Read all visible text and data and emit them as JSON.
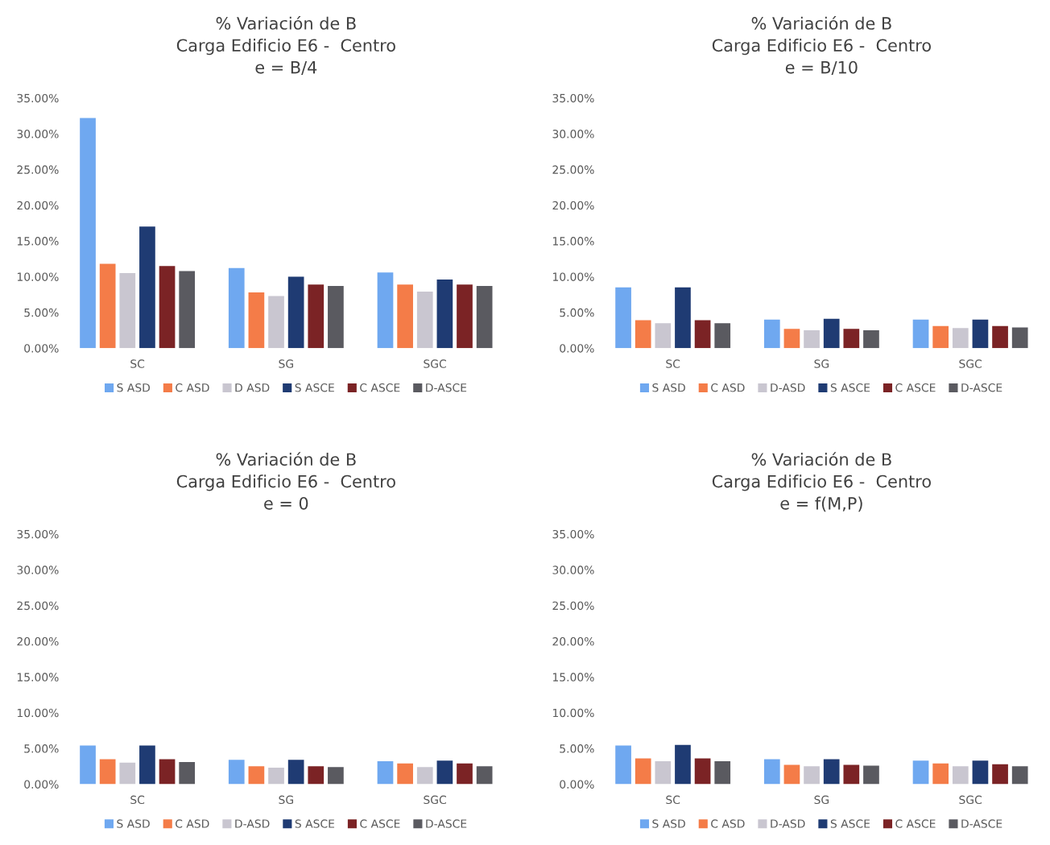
{
  "chart_data": [
    {
      "type": "bar",
      "title": "% Variación de B\nCarga Edificio E6 -  Centro\ne = B/4",
      "categories": [
        "SC",
        "SG",
        "SGC"
      ],
      "ylim": [
        0,
        35
      ],
      "yticks": [
        {
          "value": 0,
          "label": "0.00%"
        },
        {
          "value": 5,
          "label": "5.00%"
        },
        {
          "value": 10,
          "label": "10.00%"
        },
        {
          "value": 15,
          "label": "15.00%"
        },
        {
          "value": 20,
          "label": "20.00%"
        },
        {
          "value": 25,
          "label": "25.00%"
        },
        {
          "value": 30,
          "label": "30.00%"
        },
        {
          "value": 35,
          "label": "35.00%"
        }
      ],
      "grid": false,
      "legend": "bottom",
      "series": [
        {
          "name": "S ASD",
          "color": "#6fa8f0",
          "values": [
            32.2,
            11.2,
            10.6
          ]
        },
        {
          "name": "C ASD",
          "color": "#f47c48",
          "values": [
            11.8,
            7.8,
            8.9
          ]
        },
        {
          "name": "D ASD",
          "color": "#c9c6d0",
          "values": [
            10.5,
            7.3,
            7.9
          ]
        },
        {
          "name": "S ASCE",
          "color": "#1f3b73",
          "values": [
            17.0,
            10.0,
            9.6
          ]
        },
        {
          "name": "C ASCE",
          "color": "#7b2325",
          "values": [
            11.5,
            8.9,
            8.9
          ]
        },
        {
          "name": "D-ASCE",
          "color": "#5a5a60",
          "values": [
            10.8,
            8.7,
            8.7
          ]
        }
      ]
    },
    {
      "type": "bar",
      "title": "% Variación de B\nCarga Edificio E6 -  Centro\ne = B/10",
      "categories": [
        "SC",
        "SG",
        "SGC"
      ],
      "ylim": [
        0,
        35
      ],
      "yticks": [
        {
          "value": 0,
          "label": "0.00%"
        },
        {
          "value": 5,
          "label": "5.00%"
        },
        {
          "value": 10,
          "label": "10.00%"
        },
        {
          "value": 15,
          "label": "15.00%"
        },
        {
          "value": 20,
          "label": "20.00%"
        },
        {
          "value": 25,
          "label": "25.00%"
        },
        {
          "value": 30,
          "label": "30.00%"
        },
        {
          "value": 35,
          "label": "35.00%"
        }
      ],
      "grid": false,
      "legend": "bottom",
      "series": [
        {
          "name": "S ASD",
          "color": "#6fa8f0",
          "values": [
            8.5,
            4.0,
            4.0
          ]
        },
        {
          "name": "C ASD",
          "color": "#f47c48",
          "values": [
            3.9,
            2.7,
            3.1
          ]
        },
        {
          "name": "D-ASD",
          "color": "#c9c6d0",
          "values": [
            3.5,
            2.5,
            2.8
          ]
        },
        {
          "name": "S ASCE",
          "color": "#1f3b73",
          "values": [
            8.5,
            4.1,
            4.0
          ]
        },
        {
          "name": "C ASCE",
          "color": "#7b2325",
          "values": [
            3.9,
            2.7,
            3.1
          ]
        },
        {
          "name": "D-ASCE",
          "color": "#5a5a60",
          "values": [
            3.5,
            2.5,
            2.9
          ]
        }
      ]
    },
    {
      "type": "bar",
      "title": "% Variación de B\nCarga Edificio E6 -  Centro\ne = 0",
      "categories": [
        "SC",
        "SG",
        "SGC"
      ],
      "ylim": [
        0,
        35
      ],
      "yticks": [
        {
          "value": 0,
          "label": "0.00%"
        },
        {
          "value": 5,
          "label": "5.00%"
        },
        {
          "value": 10,
          "label": "10.00%"
        },
        {
          "value": 15,
          "label": "15.00%"
        },
        {
          "value": 20,
          "label": "20.00%"
        },
        {
          "value": 25,
          "label": "25.00%"
        },
        {
          "value": 30,
          "label": "30.00%"
        },
        {
          "value": 35,
          "label": "35.00%"
        }
      ],
      "grid": false,
      "legend": "bottom",
      "series": [
        {
          "name": "S ASD",
          "color": "#6fa8f0",
          "values": [
            5.4,
            3.4,
            3.2
          ]
        },
        {
          "name": "C ASD",
          "color": "#f47c48",
          "values": [
            3.5,
            2.5,
            2.9
          ]
        },
        {
          "name": "D-ASD",
          "color": "#c9c6d0",
          "values": [
            3.0,
            2.3,
            2.4
          ]
        },
        {
          "name": "S ASCE",
          "color": "#1f3b73",
          "values": [
            5.4,
            3.4,
            3.3
          ]
        },
        {
          "name": "C ASCE",
          "color": "#7b2325",
          "values": [
            3.5,
            2.5,
            2.9
          ]
        },
        {
          "name": "D-ASCE",
          "color": "#5a5a60",
          "values": [
            3.1,
            2.4,
            2.5
          ]
        }
      ]
    },
    {
      "type": "bar",
      "title": "% Variación de B\nCarga Edificio E6 -  Centro\ne = f(M,P)",
      "categories": [
        "SC",
        "SG",
        "SGC"
      ],
      "ylim": [
        0,
        35
      ],
      "yticks": [
        {
          "value": 0,
          "label": "0.00%"
        },
        {
          "value": 5,
          "label": "5.00%"
        },
        {
          "value": 10,
          "label": "10.00%"
        },
        {
          "value": 15,
          "label": "15.00%"
        },
        {
          "value": 20,
          "label": "20.00%"
        },
        {
          "value": 25,
          "label": "25.00%"
        },
        {
          "value": 30,
          "label": "30.00%"
        },
        {
          "value": 35,
          "label": "35.00%"
        }
      ],
      "grid": false,
      "legend": "bottom",
      "series": [
        {
          "name": "S ASD",
          "color": "#6fa8f0",
          "values": [
            5.4,
            3.5,
            3.3
          ]
        },
        {
          "name": "C ASD",
          "color": "#f47c48",
          "values": [
            3.6,
            2.7,
            2.9
          ]
        },
        {
          "name": "D-ASD",
          "color": "#c9c6d0",
          "values": [
            3.2,
            2.5,
            2.5
          ]
        },
        {
          "name": "S ASCE",
          "color": "#1f3b73",
          "values": [
            5.5,
            3.5,
            3.3
          ]
        },
        {
          "name": "C ASCE",
          "color": "#7b2325",
          "values": [
            3.6,
            2.7,
            2.8
          ]
        },
        {
          "name": "D-ASCE",
          "color": "#5a5a60",
          "values": [
            3.2,
            2.6,
            2.5
          ]
        }
      ]
    }
  ]
}
